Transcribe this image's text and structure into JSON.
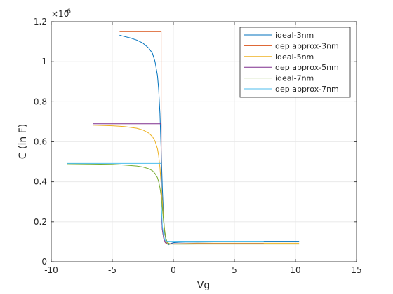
{
  "chart_data": {
    "type": "line",
    "title": "",
    "xlabel": "Vg",
    "ylabel": "C (in F)",
    "y_exponent_label": "×10",
    "y_exponent_power": "-6",
    "xlim": [
      -10,
      15
    ],
    "ylim": [
      0,
      1.2
    ],
    "xticks": [
      -10,
      -5,
      0,
      5,
      10,
      15
    ],
    "yticks": [
      0,
      0.2,
      0.4,
      0.6,
      0.8,
      1,
      1.2
    ],
    "x_tick_labels": [
      "-10",
      "-5",
      "0",
      "5",
      "10",
      "15"
    ],
    "y_tick_labels": [
      "0",
      "0.2",
      "0.4",
      "0.6",
      "0.8",
      "1",
      "1.2"
    ],
    "grid": true,
    "legend_position": "top-right",
    "series": [
      {
        "name": "ideal-3nm",
        "color": "#0072BD",
        "x": [
          -4.4,
          -4.0,
          -3.5,
          -3.0,
          -2.5,
          -2.0,
          -1.7,
          -1.5,
          -1.3,
          -1.2,
          -1.1,
          -1.0,
          -0.9,
          -0.8,
          -0.7,
          -0.6,
          -0.5,
          -0.4,
          -0.3,
          -0.2,
          0,
          0.5,
          1,
          2,
          4,
          6,
          8,
          10.3
        ],
        "y": [
          1.132,
          1.126,
          1.118,
          1.108,
          1.093,
          1.067,
          1.04,
          1.0,
          0.93,
          0.86,
          0.74,
          0.56,
          0.37,
          0.22,
          0.14,
          0.105,
          0.09,
          0.085,
          0.088,
          0.092,
          0.096,
          0.098,
          0.099,
          0.099,
          0.1,
          0.1,
          0.1,
          0.1
        ]
      },
      {
        "name": "dep approx-3nm",
        "color": "#D95319",
        "x": [
          -4.4,
          -1.0,
          -1.0,
          -0.9,
          -0.8,
          -0.7,
          -0.6,
          -0.5,
          -0.3,
          0,
          1,
          4,
          7.4
        ],
        "y": [
          1.15,
          1.15,
          0.28,
          0.16,
          0.12,
          0.1,
          0.092,
          0.09,
          0.09,
          0.09,
          0.09,
          0.09,
          0.09
        ]
      },
      {
        "name": "ideal-5nm",
        "color": "#EDB120",
        "x": [
          -6.6,
          -5.0,
          -4.0,
          -3.0,
          -2.5,
          -2.0,
          -1.7,
          -1.5,
          -1.3,
          -1.2,
          -1.1,
          -1.0,
          -0.9,
          -0.8,
          -0.7,
          -0.6,
          -0.5,
          -0.4,
          -0.2,
          0,
          1,
          2,
          4,
          6,
          8,
          10.3
        ],
        "y": [
          0.683,
          0.68,
          0.676,
          0.668,
          0.659,
          0.643,
          0.625,
          0.603,
          0.565,
          0.53,
          0.47,
          0.39,
          0.3,
          0.21,
          0.15,
          0.11,
          0.092,
          0.088,
          0.088,
          0.09,
          0.092,
          0.093,
          0.093,
          0.093,
          0.093,
          0.093
        ]
      },
      {
        "name": "dep approx-5nm",
        "color": "#7E2F8E",
        "x": [
          -6.6,
          -1.0,
          -1.0,
          -0.9,
          -0.8,
          -0.7,
          -0.6,
          -0.5,
          -0.3,
          0,
          1,
          4,
          7.4
        ],
        "y": [
          0.69,
          0.69,
          0.26,
          0.16,
          0.12,
          0.1,
          0.093,
          0.09,
          0.09,
          0.09,
          0.09,
          0.09,
          0.09
        ]
      },
      {
        "name": "ideal-7nm",
        "color": "#77AC30",
        "x": [
          -8.7,
          -7.0,
          -5.0,
          -4.0,
          -3.0,
          -2.5,
          -2.0,
          -1.7,
          -1.5,
          -1.3,
          -1.2,
          -1.1,
          -1.0,
          -0.9,
          -0.8,
          -0.7,
          -0.6,
          -0.5,
          -0.3,
          0,
          1,
          2,
          4,
          6,
          8,
          10.3
        ],
        "y": [
          0.49,
          0.489,
          0.487,
          0.484,
          0.479,
          0.474,
          0.465,
          0.455,
          0.441,
          0.42,
          0.4,
          0.37,
          0.33,
          0.27,
          0.2,
          0.15,
          0.115,
          0.098,
          0.09,
          0.088,
          0.088,
          0.089,
          0.089,
          0.089,
          0.089,
          0.089
        ]
      },
      {
        "name": "dep approx-7nm",
        "color": "#4DBEEE",
        "x": [
          -8.7,
          -1.0,
          -1.0,
          -0.9,
          -0.8,
          -0.7,
          -0.6,
          -0.5,
          -0.3,
          0,
          1,
          4,
          7.4
        ],
        "y": [
          0.492,
          0.492,
          0.3,
          0.18,
          0.13,
          0.11,
          0.1,
          0.1,
          0.1,
          0.1,
          0.1,
          0.1,
          0.1
        ]
      }
    ]
  }
}
